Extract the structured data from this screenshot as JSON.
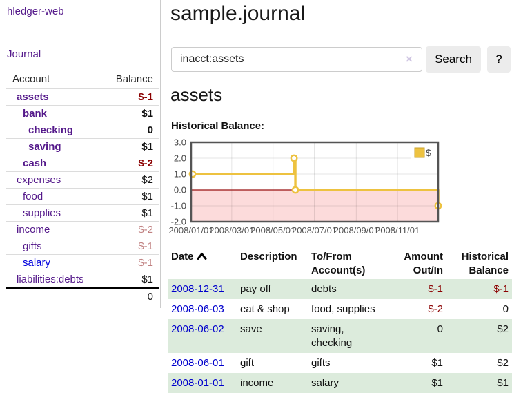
{
  "colors": {
    "link_purple": "#551a8b",
    "link_blue": "#0000dd",
    "negative_strong": "#8b0000",
    "negative_muted": "#c08080",
    "row_green": "#dcebdc",
    "series_gold": "#edc240"
  },
  "sidebar": {
    "brand": "hledger-web",
    "journal_link": "Journal",
    "table": {
      "headers": {
        "account": "Account",
        "balance": "Balance"
      },
      "rows": [
        {
          "name": "assets",
          "balance": "$-1"
        },
        {
          "name": "bank",
          "balance": "$1"
        },
        {
          "name": "checking",
          "balance": "0"
        },
        {
          "name": "saving",
          "balance": "$1"
        },
        {
          "name": "cash",
          "balance": "$-2"
        },
        {
          "name": "expenses",
          "balance": "$2"
        },
        {
          "name": "food",
          "balance": "$1"
        },
        {
          "name": "supplies",
          "balance": "$1"
        },
        {
          "name": "income",
          "balance": "$-2"
        },
        {
          "name": "gifts",
          "balance": "$-1"
        },
        {
          "name": "salary",
          "balance": "$-1"
        },
        {
          "name": "liabilities:debts",
          "balance": "$1"
        }
      ],
      "total": "0"
    }
  },
  "main": {
    "title": "sample.journal",
    "search": {
      "value": "inacct:assets",
      "clear_icon": "×",
      "button_label": "Search",
      "help_label": "?"
    },
    "account_heading": "assets",
    "chart_label": "Historical Balance:"
  },
  "chart_data": {
    "type": "line",
    "title": "Historical Balance:",
    "legend": {
      "position": "top-right",
      "entries": [
        "$"
      ]
    },
    "ylim": [
      -2,
      3
    ],
    "y_ticks": [
      "3.0",
      "2.0",
      "1.0",
      "0.0",
      "-1.0",
      "-2.0"
    ],
    "y_tick_values": [
      3,
      2,
      1,
      0,
      -1,
      -2
    ],
    "x_range_days": 365,
    "x_ticks": [
      {
        "label": "2008/01/01",
        "day": 0
      },
      {
        "label": "2008/03/01",
        "day": 60
      },
      {
        "label": "2008/05/01",
        "day": 121
      },
      {
        "label": "2008/07/01",
        "day": 182
      },
      {
        "label": "2008/09/01",
        "day": 244
      },
      {
        "label": "2008/11/01",
        "day": 305
      }
    ],
    "series": [
      {
        "name": "$",
        "color": "#edc240",
        "step": true,
        "points": [
          {
            "date": "2008-01-01",
            "day": 0,
            "value": 1
          },
          {
            "date": "2008-06-01",
            "day": 152,
            "value": 2
          },
          {
            "date": "2008-06-03",
            "day": 154,
            "value": 0
          },
          {
            "date": "2008-12-31",
            "day": 365,
            "value": -1
          }
        ]
      }
    ],
    "negative_region_fill": "#fcdbdb",
    "zero_line_color": "#991111",
    "grid": true
  },
  "register": {
    "headers": {
      "date": "Date",
      "description": "Description",
      "accounts": "To/From Account(s)",
      "amount": "Amount Out/In",
      "balance": "Historical Balance"
    },
    "rows": [
      {
        "date": "2008-12-31",
        "description": "pay off",
        "accounts": "debts",
        "amount": "$-1",
        "balance": "$-1"
      },
      {
        "date": "2008-06-03",
        "description": "eat & shop",
        "accounts": "food, supplies",
        "amount": "$-2",
        "balance": "0"
      },
      {
        "date": "2008-06-02",
        "description": "save",
        "accounts": "saving, checking",
        "amount": "0",
        "balance": "$2"
      },
      {
        "date": "2008-06-01",
        "description": "gift",
        "accounts": "gifts",
        "amount": "$1",
        "balance": "$2"
      },
      {
        "date": "2008-01-01",
        "description": "income",
        "accounts": "salary",
        "amount": "$1",
        "balance": "$1"
      }
    ]
  }
}
